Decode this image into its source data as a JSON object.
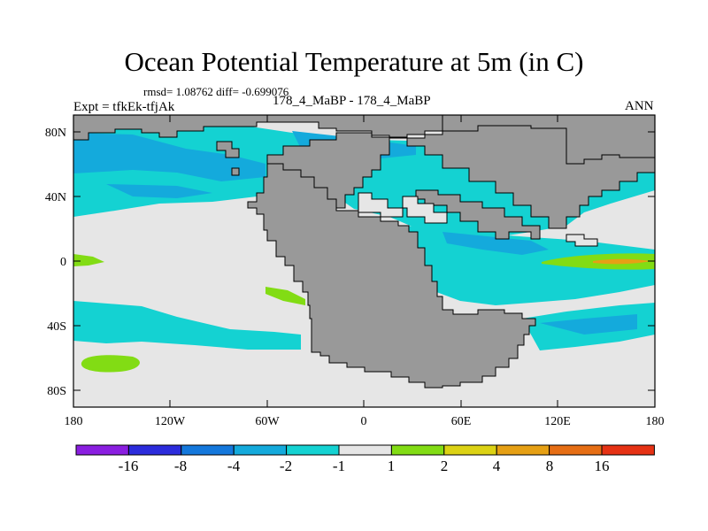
{
  "title": "Ocean Potential Temperature at 5m (in C)",
  "stats": "rmsd= 1.08762 diff= -0.699076",
  "expt": "Expt = tfkEk-tfjAk",
  "case": "178_4_MaBP - 178_4_MaBP",
  "season": "ANN",
  "lat_labels": [
    "80N",
    "40N",
    "0",
    "40S",
    "80S"
  ],
  "lon_labels": [
    "180",
    "120W",
    "60W",
    "0",
    "60E",
    "120E",
    "180"
  ],
  "colorbar": {
    "labels": [
      "-16",
      "-8",
      "-4",
      "-2",
      "-1",
      "1",
      "2",
      "4",
      "8",
      "16"
    ],
    "colors": [
      "#8a1ee0",
      "#2c2cdc",
      "#1478dc",
      "#14aadc",
      "#14d2d2",
      "#e6e6e6",
      "#82dc14",
      "#dcd214",
      "#e6a014",
      "#e66e14",
      "#e63214"
    ]
  },
  "map_colors": {
    "land": "#999999",
    "near_zero": "#e6e6e6",
    "cyan": "#14d2d2",
    "light_blue": "#14aadc",
    "green": "#82dc14",
    "orange": "#e6a014"
  }
}
